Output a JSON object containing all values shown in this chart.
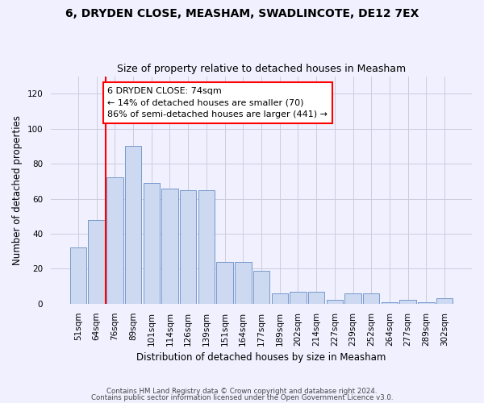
{
  "title": "6, DRYDEN CLOSE, MEASHAM, SWADLINCOTE, DE12 7EX",
  "subtitle": "Size of property relative to detached houses in Measham",
  "xlabel": "Distribution of detached houses by size in Measham",
  "ylabel": "Number of detached properties",
  "categories": [
    "51sqm",
    "64sqm",
    "76sqm",
    "89sqm",
    "101sqm",
    "114sqm",
    "126sqm",
    "139sqm",
    "151sqm",
    "164sqm",
    "177sqm",
    "189sqm",
    "202sqm",
    "214sqm",
    "227sqm",
    "239sqm",
    "252sqm",
    "264sqm",
    "277sqm",
    "289sqm",
    "302sqm"
  ],
  "values": [
    32,
    48,
    72,
    90,
    69,
    66,
    65,
    65,
    24,
    24,
    19,
    6,
    7,
    7,
    2,
    6,
    6,
    1,
    2,
    1,
    3
  ],
  "ylim": [
    0,
    130
  ],
  "yticks": [
    0,
    20,
    40,
    60,
    80,
    100,
    120
  ],
  "bar_color": "#ccd9f0",
  "bar_edge_color": "#7799cc",
  "vline_x": 1.5,
  "vline_color": "red",
  "annotation_text": "6 DRYDEN CLOSE: 74sqm\n← 14% of detached houses are smaller (70)\n86% of semi-detached houses are larger (441) →",
  "annotation_box_color": "white",
  "annotation_box_edge": "red",
  "footer1": "Contains HM Land Registry data © Crown copyright and database right 2024.",
  "footer2": "Contains public sector information licensed under the Open Government Licence v3.0.",
  "background_color": "#f0f0ff",
  "grid_color": "#ccccdd"
}
